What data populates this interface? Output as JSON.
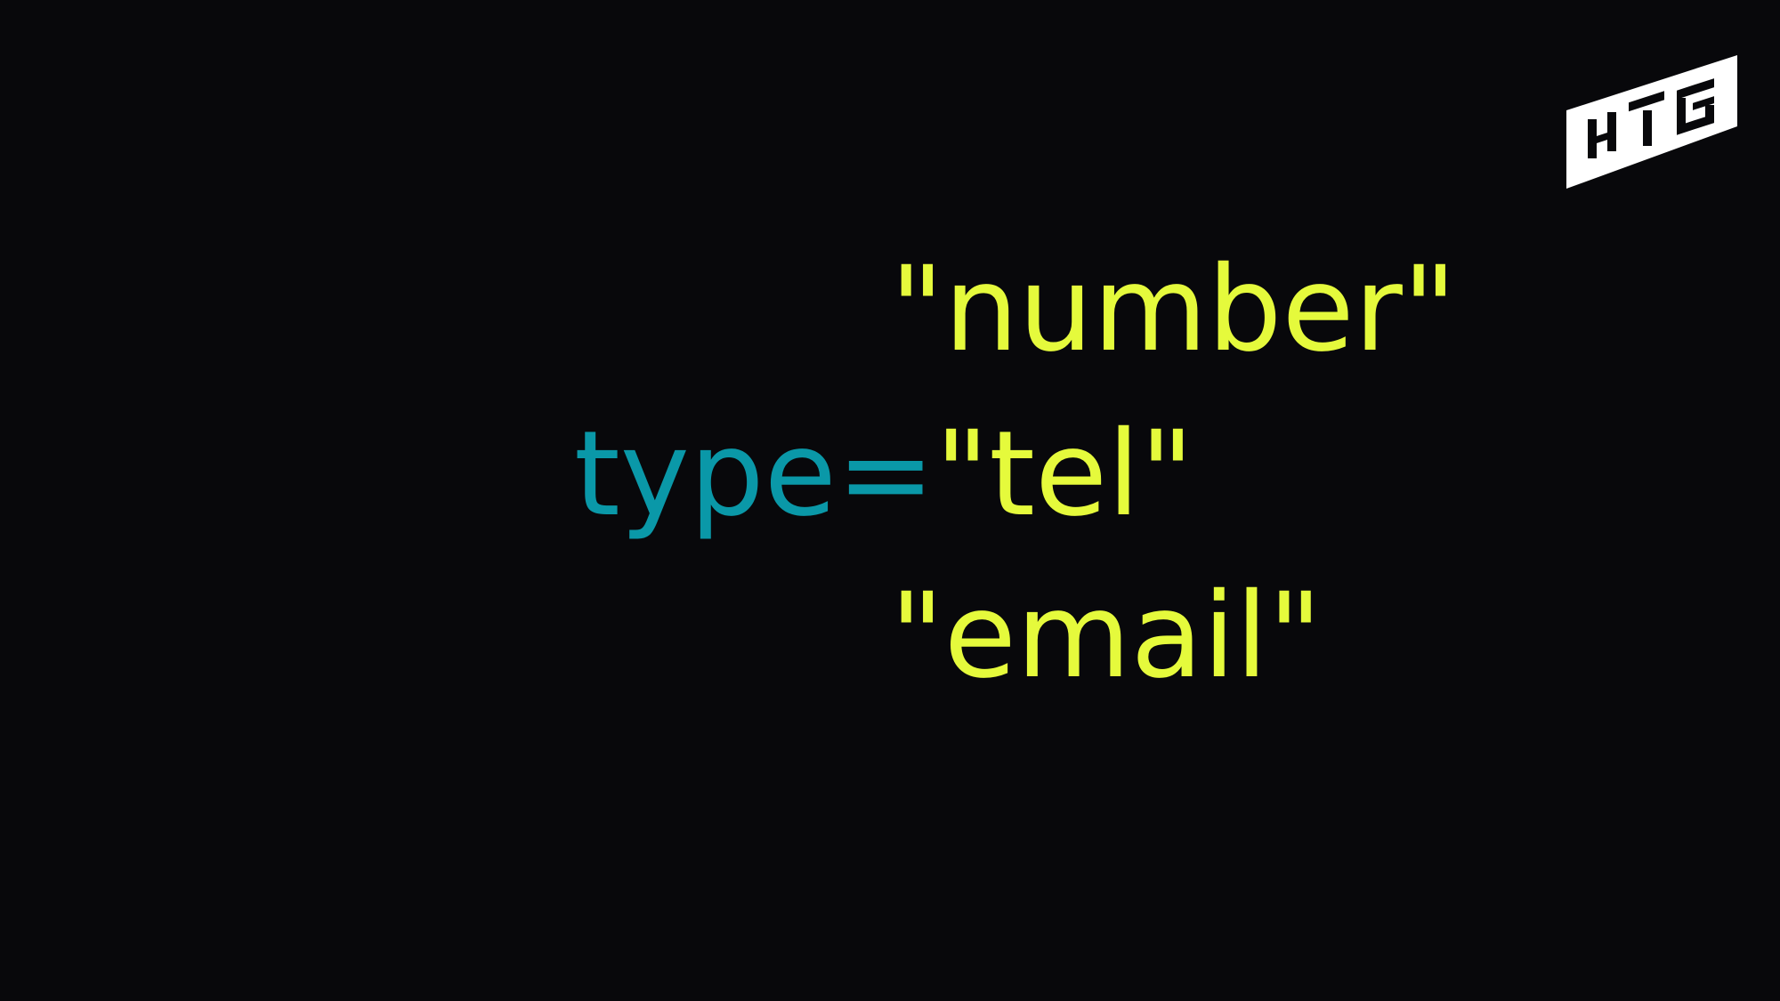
{
  "code": {
    "attribute": "type=",
    "values": [
      "\"number\"",
      "\"tel\"",
      "\"email\""
    ]
  },
  "colors": {
    "background": "#08080b",
    "attribute": "#0a98a8",
    "value": "#e5fa3c",
    "logo": "#ffffff"
  },
  "logo": {
    "text": "HTG",
    "icon": "htg-logo-icon"
  }
}
